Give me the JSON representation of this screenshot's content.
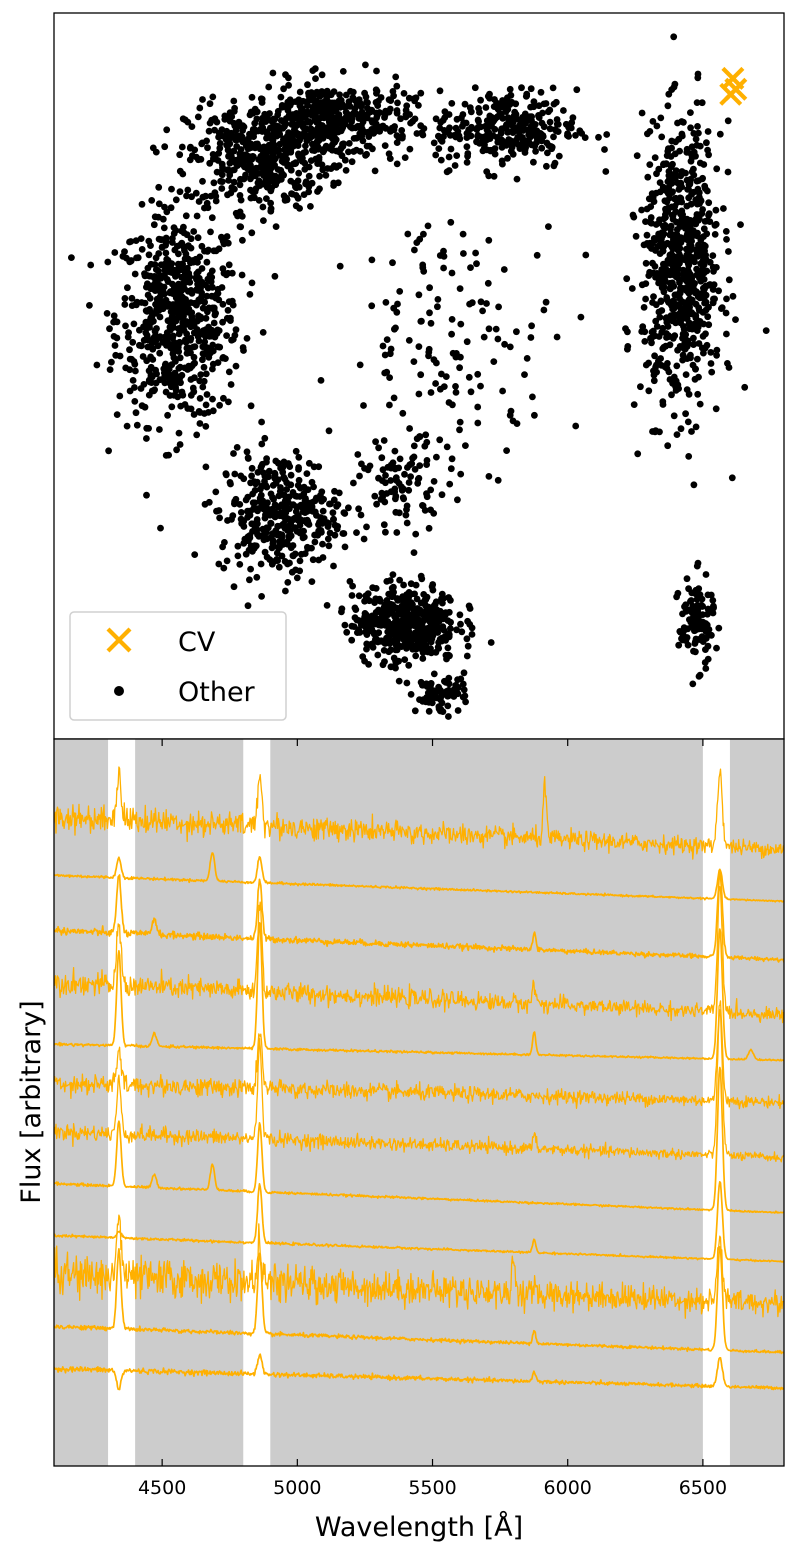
{
  "chart_data": [
    {
      "type": "scatter",
      "title": "",
      "xlabel": "",
      "ylabel": "",
      "axes_ticks": "none",
      "legend": {
        "placement": "bottom-left",
        "entries": [
          {
            "label": "CV",
            "marker": "x",
            "color": "#FFB000"
          },
          {
            "label": "Other",
            "marker": "dot",
            "color": "#000000"
          }
        ]
      },
      "series": [
        {
          "name": "CV",
          "color": "#FFB000",
          "marker": "x",
          "points": [
            [
              0.93,
              0.91
            ],
            [
              0.934,
              0.895
            ],
            [
              0.927,
              0.888
            ]
          ]
        },
        {
          "name": "Other",
          "color": "#000000",
          "marker": "dot",
          "clusters": [
            {
              "center": [
                0.17,
                0.58
              ],
              "spread": [
                0.07,
                0.12
              ],
              "count": 650
            },
            {
              "center": [
                0.28,
                0.8
              ],
              "spread": [
                0.08,
                0.06
              ],
              "count": 420
            },
            {
              "center": [
                0.38,
                0.85
              ],
              "spread": [
                0.09,
                0.045
              ],
              "count": 430
            },
            {
              "center": [
                0.62,
                0.84
              ],
              "spread": [
                0.08,
                0.045
              ],
              "count": 300
            },
            {
              "center": [
                0.31,
                0.31
              ],
              "spread": [
                0.07,
                0.07
              ],
              "count": 380
            },
            {
              "center": [
                0.48,
                0.16
              ],
              "spread": [
                0.06,
                0.045
              ],
              "count": 460
            },
            {
              "center": [
                0.86,
                0.65
              ],
              "spread": [
                0.045,
                0.16
              ],
              "count": 720
            },
            {
              "center": [
                0.88,
                0.16
              ],
              "spread": [
                0.02,
                0.05
              ],
              "count": 120
            },
            {
              "center": [
                0.53,
                0.06
              ],
              "spread": [
                0.03,
                0.02
              ],
              "count": 70
            },
            {
              "center": [
                0.48,
                0.35
              ],
              "spread": [
                0.05,
                0.05
              ],
              "count": 90
            },
            {
              "center": [
                0.55,
                0.55
              ],
              "spread": [
                0.12,
                0.14
              ],
              "count": 140
            }
          ]
        }
      ]
    },
    {
      "type": "line",
      "title": "",
      "xlabel": "Wavelength [Å]",
      "ylabel": "Flux [arbitrary]",
      "xlim": [
        4100,
        6800
      ],
      "xticks": [
        4500,
        5000,
        5500,
        6000,
        6500
      ],
      "xtick_labels": [
        "4500",
        "5000",
        "5500",
        "6000",
        "6500"
      ],
      "y_ticks": "none",
      "background_color": "#CCCCCC",
      "unshaded_bands": [
        [
          4300,
          4400
        ],
        [
          4800,
          4900
        ],
        [
          6500,
          6600
        ]
      ],
      "line_color": "#FFB000",
      "series": [
        {
          "name": "",
          "offset": 20.0,
          "slope": -1.0,
          "noise": 0.3,
          "lines": {
            "4340": 1.5,
            "4861": 1.6,
            "6563": 2.3,
            "5915": 1.6
          }
        },
        {
          "name": "",
          "offset": 18.2,
          "slope": -0.8,
          "noise": 0.03,
          "lines": {
            "4340": 0.6,
            "4686": 0.9,
            "4861": 0.8,
            "6563": 0.9
          }
        },
        {
          "name": "",
          "offset": 16.5,
          "slope": -0.9,
          "noise": 0.08,
          "lines": {
            "4340": 1.8,
            "4471": 0.5,
            "4861": 1.8,
            "5876": 0.5,
            "6563": 2.6
          }
        },
        {
          "name": "",
          "offset": 14.9,
          "slope": -1.0,
          "noise": 0.25,
          "lines": {
            "4340": 1.9,
            "4861": 2.7,
            "5876": 0.6,
            "6563": 3.8
          }
        },
        {
          "name": "",
          "offset": 13.0,
          "slope": -0.5,
          "noise": 0.03,
          "lines": {
            "4340": 2.9,
            "4471": 0.4,
            "4861": 3.9,
            "5876": 0.7,
            "6563": 4.0,
            "6678": 0.3
          }
        },
        {
          "name": "",
          "offset": 11.8,
          "slope": -0.6,
          "noise": 0.22,
          "lines": {
            "4340": 1.0,
            "4861": 1.8,
            "6563": 3.0
          }
        },
        {
          "name": "",
          "offset": 10.3,
          "slope": -0.8,
          "noise": 0.18,
          "lines": {
            "4340": 1.6,
            "4861": 2.9,
            "5876": 0.4,
            "6563": 4.5
          }
        },
        {
          "name": "",
          "offset": 8.7,
          "slope": -0.9,
          "noise": 0.03,
          "lines": {
            "4340": 2.0,
            "4471": 0.4,
            "4686": 0.8,
            "4861": 2.1,
            "6563": 4.4
          }
        },
        {
          "name": "",
          "offset": 7.1,
          "slope": -0.8,
          "noise": 0.03,
          "lines": {
            "4340": 0.2,
            "4861": 1.8,
            "5876": 0.4,
            "6563": 2.4
          }
        },
        {
          "name": "",
          "offset": 5.9,
          "slope": -0.9,
          "noise": 0.45,
          "lines": {
            "4340": 1.9,
            "4861": 1.2,
            "5800": 1.0,
            "6563": 2.0
          }
        },
        {
          "name": "",
          "offset": 4.3,
          "slope": -0.8,
          "noise": 0.05,
          "lines": {
            "4340": 2.4,
            "4861": 2.5,
            "5876": 0.4,
            "6563": 3.2
          }
        },
        {
          "name": "",
          "offset": 3.0,
          "slope": -0.6,
          "noise": 0.06,
          "lines": {
            "4340": -0.6,
            "4861": 0.6,
            "5876": 0.3,
            "6563": 0.9
          }
        }
      ]
    }
  ]
}
